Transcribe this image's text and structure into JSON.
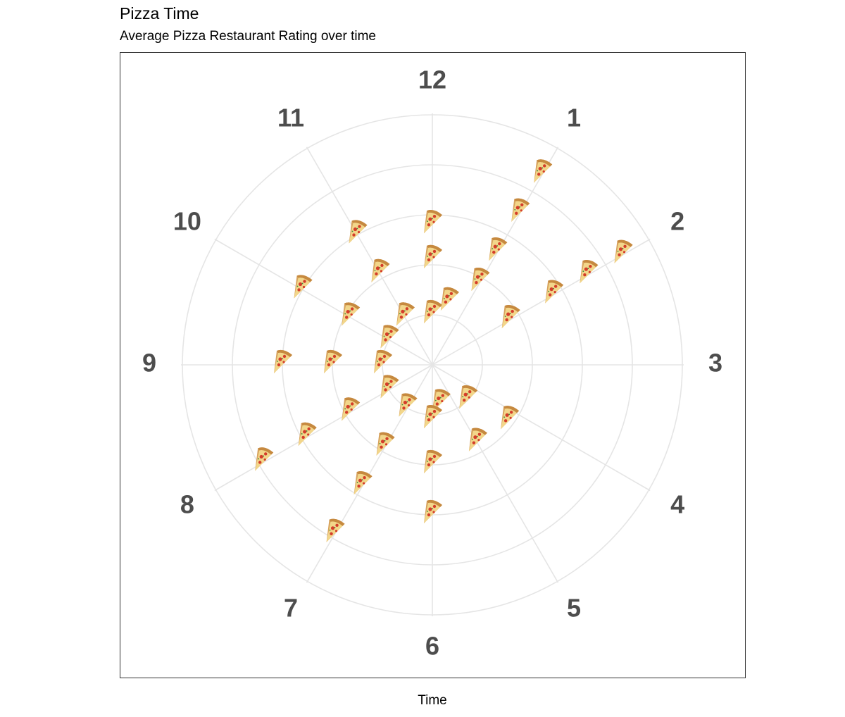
{
  "title": "Pizza Time",
  "subtitle": "Average Pizza Restaurant Rating over time",
  "chart_data": {
    "type": "scatter",
    "coord": "polar",
    "title": "Pizza Time",
    "subtitle": "Average Pizza Restaurant Rating over time",
    "xlabel": "Time",
    "ylabel": "",
    "theta_ticks": [
      "12",
      "1",
      "2",
      "3",
      "4",
      "5",
      "6",
      "7",
      "8",
      "9",
      "10",
      "11"
    ],
    "theta_range": [
      0,
      12
    ],
    "r_range": [
      0,
      5
    ],
    "grid": true,
    "marker": "pizza-slice-emoji",
    "colors": {
      "grid": "#e5e5e5",
      "tick_text": "#4d4d4d",
      "border": "#333333",
      "crust": "#d7a35e",
      "cheese": "#f2d68a",
      "pepperoni": "#d43d2a"
    },
    "points": [
      {
        "x": 12,
        "y": 2.8
      },
      {
        "x": 12,
        "y": 2.1
      },
      {
        "x": 12,
        "y": 1.0
      },
      {
        "x": 0.5,
        "y": 1.3
      },
      {
        "x": 1,
        "y": 4.4
      },
      {
        "x": 1,
        "y": 3.5
      },
      {
        "x": 1,
        "y": 2.6
      },
      {
        "x": 1,
        "y": 1.9
      },
      {
        "x": 2,
        "y": 4.4
      },
      {
        "x": 2,
        "y": 3.6
      },
      {
        "x": 2,
        "y": 2.8
      },
      {
        "x": 2,
        "y": 1.8
      },
      {
        "x": 4.5,
        "y": 1.0
      },
      {
        "x": 4.2,
        "y": 1.9
      },
      {
        "x": 5,
        "y": 1.8
      },
      {
        "x": 5.6,
        "y": 0.8
      },
      {
        "x": 6,
        "y": 1.1
      },
      {
        "x": 6,
        "y": 2.0
      },
      {
        "x": 6,
        "y": 3.0
      },
      {
        "x": 7,
        "y": 1.0
      },
      {
        "x": 7,
        "y": 1.9
      },
      {
        "x": 7,
        "y": 2.8
      },
      {
        "x": 7,
        "y": 3.9
      },
      {
        "x": 8,
        "y": 1.0
      },
      {
        "x": 8,
        "y": 1.9
      },
      {
        "x": 8,
        "y": 2.9
      },
      {
        "x": 8,
        "y": 3.9
      },
      {
        "x": 9,
        "y": 1.0
      },
      {
        "x": 9,
        "y": 2.0
      },
      {
        "x": 9,
        "y": 3.0
      },
      {
        "x": 10,
        "y": 1.0
      },
      {
        "x": 10,
        "y": 1.9
      },
      {
        "x": 10,
        "y": 3.0
      },
      {
        "x": 11,
        "y": 1.1
      },
      {
        "x": 11,
        "y": 2.1
      },
      {
        "x": 11,
        "y": 3.0
      }
    ]
  }
}
